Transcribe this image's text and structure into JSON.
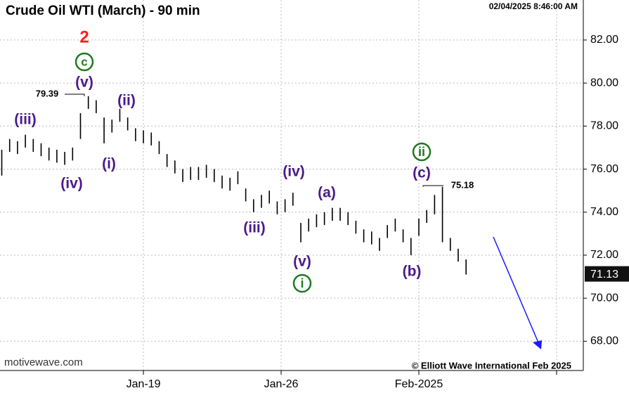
{
  "chart_data": {
    "type": "ohlc",
    "title": "Crude Oil WTI (March) - 90 min",
    "timestamp": "02/04/2025 8:46:00 AM",
    "watermark": "motivewave.com",
    "copyright": "© Elliott Wave International Feb 2025",
    "color": "#000000",
    "x": [
      -7.2,
      -6.8,
      -6.4,
      -6.0,
      -5.6,
      -5.2,
      -4.8,
      -4.4,
      -4.0,
      -3.6,
      -3.2,
      -2.8,
      -2.4,
      -2.0,
      -1.6,
      -1.2,
      -0.8,
      -0.4,
      0.0,
      0.4,
      0.8,
      1.2,
      1.6,
      2.0,
      2.4,
      2.8,
      3.2,
      3.6,
      4.0,
      4.4,
      4.8,
      5.2,
      5.6,
      6.0,
      6.4,
      6.8,
      7.2,
      7.6,
      8.0,
      8.4,
      8.8,
      9.2,
      9.6,
      10.0,
      10.4,
      10.8,
      11.2,
      11.6,
      12.0,
      12.4,
      12.8,
      13.2,
      13.6,
      14.0,
      14.4,
      14.8,
      15.2,
      15.6,
      16.0,
      16.4
    ],
    "high": [
      76.9,
      77.4,
      77.3,
      77.6,
      77.4,
      77.2,
      77.0,
      76.9,
      76.8,
      77.0,
      78.6,
      79.39,
      79.2,
      78.4,
      78.3,
      78.8,
      78.4,
      77.9,
      77.8,
      77.7,
      77.3,
      76.7,
      76.4,
      76.0,
      76.1,
      76.1,
      76.2,
      76.0,
      75.7,
      75.6,
      75.9,
      75.1,
      74.6,
      74.8,
      75.0,
      74.5,
      74.6,
      74.9,
      73.5,
      73.7,
      73.9,
      74.0,
      74.2,
      74.2,
      74.0,
      73.6,
      73.2,
      73.1,
      72.8,
      73.4,
      73.7,
      73.2,
      72.8,
      73.7,
      74.1,
      74.8,
      75.18,
      72.8,
      72.3,
      71.8
    ],
    "low": [
      75.7,
      76.8,
      76.7,
      77.0,
      76.8,
      76.6,
      76.4,
      76.3,
      76.2,
      76.4,
      77.4,
      78.8,
      78.6,
      77.2,
      77.7,
      78.2,
      77.8,
      77.3,
      77.2,
      77.1,
      76.7,
      76.1,
      75.8,
      75.4,
      75.5,
      75.5,
      75.6,
      75.4,
      75.1,
      75.0,
      75.3,
      74.5,
      74.0,
      74.2,
      74.4,
      73.9,
      74.0,
      74.3,
      72.6,
      73.1,
      73.3,
      73.4,
      73.6,
      73.6,
      73.4,
      73.0,
      72.6,
      72.5,
      72.2,
      72.8,
      73.1,
      72.6,
      72.0,
      72.9,
      73.5,
      73.9,
      72.6,
      72.2,
      71.7,
      71.1
    ],
    "last": 71.13,
    "xlim": [
      -7.29,
      22.36
    ],
    "ylim": [
      66.64,
      83.86
    ],
    "xticks": [
      {
        "value": 0,
        "label": "Jan-19"
      },
      {
        "value": 7,
        "label": "Jan-26"
      },
      {
        "value": 14,
        "label": "Feb-2025"
      },
      {
        "value": 21,
        "label": null
      }
    ],
    "yticks": [
      {
        "value": 68,
        "label": "68.00"
      },
      {
        "value": 70,
        "label": "70.00"
      },
      {
        "value": 72,
        "label": "72.00"
      },
      {
        "value": 74,
        "label": "74.00"
      },
      {
        "value": 76,
        "label": "76.00"
      },
      {
        "value": 78,
        "label": "78.00"
      },
      {
        "value": 80,
        "label": "80.00"
      },
      {
        "value": 82,
        "label": "82.00"
      }
    ],
    "grid": true,
    "callouts": [
      79.39,
      75.18
    ],
    "wave_labels": [
      "2",
      "c",
      "(v)",
      "(iii)",
      "(ii)",
      "(i)",
      "(iv)",
      "(iii)",
      "(iv)",
      "(a)",
      "(v)",
      "i",
      "(b)",
      "(c)",
      "ii"
    ]
  }
}
